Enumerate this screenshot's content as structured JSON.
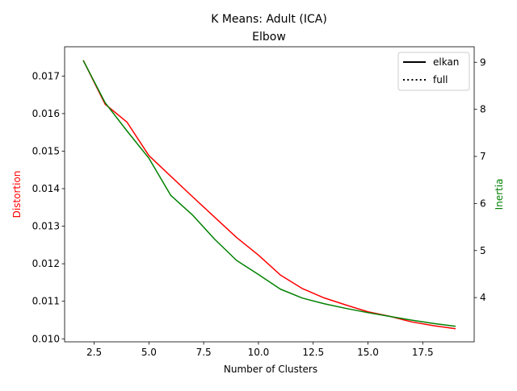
{
  "chart_data": {
    "type": "line",
    "title": "K Means: Adult (ICA)",
    "subtitle": "Elbow",
    "xlabel": "Number of Clusters",
    "ylabel_left": "Distortion",
    "ylabel_right": "Inertia",
    "xlim": [
      1.15,
      19.85
    ],
    "ylim_left": [
      0.00992,
      0.01778
    ],
    "ylim_right": [
      3.06,
      9.33
    ],
    "x_ticks": [
      "2.5",
      "5.0",
      "7.5",
      "10.0",
      "12.5",
      "15.0",
      "17.5"
    ],
    "y_left_ticks": [
      "0.010",
      "0.011",
      "0.012",
      "0.013",
      "0.014",
      "0.015",
      "0.016",
      "0.017"
    ],
    "y_right_ticks": [
      "4",
      "5",
      "6",
      "7",
      "8",
      "9"
    ],
    "grid": false,
    "legend_position": "top-right",
    "legend": [
      {
        "label": "elkan",
        "style": "solid"
      },
      {
        "label": "full",
        "style": "dotted"
      }
    ],
    "x": [
      2,
      3,
      4,
      5,
      6,
      7,
      8,
      9,
      10,
      11,
      12,
      13,
      14,
      15,
      16,
      17,
      18,
      19
    ],
    "series": [
      {
        "axis": "left",
        "color": "#ff0000",
        "values": [
          0.01742,
          0.01625,
          0.01577,
          0.01488,
          0.01433,
          0.01378,
          0.01324,
          0.0127,
          0.01223,
          0.0117,
          0.01134,
          0.01109,
          0.0109,
          0.01072,
          0.0106,
          0.01045,
          0.01035,
          0.01027
        ]
      },
      {
        "axis": "right",
        "color": "#008000",
        "values": [
          9.04,
          8.14,
          7.54,
          6.96,
          6.17,
          5.75,
          5.24,
          4.79,
          4.49,
          4.18,
          3.99,
          3.87,
          3.77,
          3.68,
          3.6,
          3.52,
          3.45,
          3.39
        ]
      }
    ]
  }
}
